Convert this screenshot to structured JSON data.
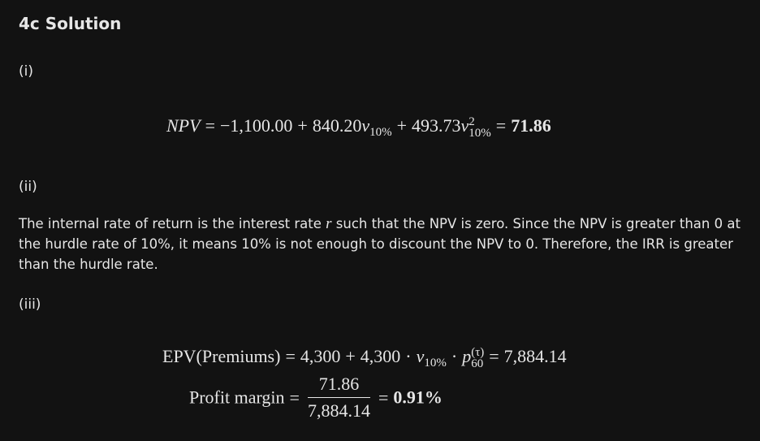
{
  "header": {
    "title": "4c Solution"
  },
  "part_i": {
    "label": "(i)",
    "equation": [
      "NPV",
      "=",
      "−1,100.00",
      "+",
      "840.20",
      "v",
      "10%",
      "+",
      "493.73",
      "v",
      "2",
      "10%",
      "=",
      "71.86"
    ]
  },
  "part_ii": {
    "label": "(ii)",
    "paragraph": [
      "The internal rate of return is the interest rate ",
      "r",
      " such that the NPV is zero. Since the NPV is greater than 0 at the hurdle rate of 10%, it means 10% is not enough to discount the NPV to 0. Therefore, the IRR is greater than the hurdle rate."
    ]
  },
  "part_iii": {
    "label": "(iii)",
    "equation_1": [
      "EPV(Premiums)",
      "=",
      "4,300",
      "+",
      "4,300",
      "·",
      "v",
      "10%",
      "·",
      "p",
      "(τ)",
      "60",
      "=",
      "7,884.14"
    ],
    "equation_2": [
      "Profit margin",
      "=",
      "71.86",
      "7,884.14",
      "=",
      "0.91%"
    ]
  }
}
